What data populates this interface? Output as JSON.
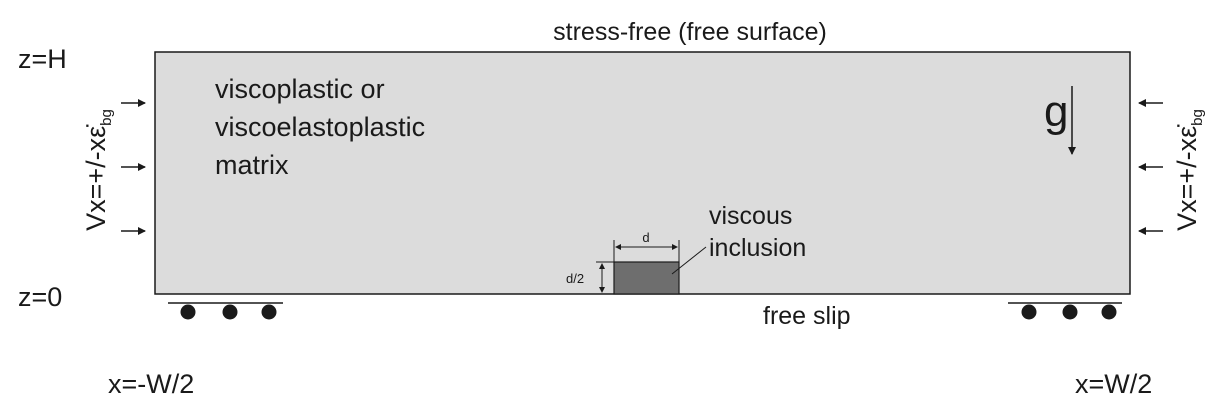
{
  "labels": {
    "top_boundary": "stress-free (free surface)",
    "z_top": "z=H",
    "z_bottom": "z=0",
    "x_left": "x=-W/2",
    "x_right": "x=W/2",
    "bottom_boundary": "free slip",
    "matrix_line1": "viscoplastic or",
    "matrix_line2": "viscoelastoplastic",
    "matrix_line3": "matrix",
    "inclusion_line1": "viscous",
    "inclusion_line2": "inclusion",
    "inclusion_width": "d",
    "inclusion_height": "d/2",
    "gravity": "g",
    "velocity_main": "Vx=+/-xε̇",
    "velocity_sub": "bg"
  },
  "colors": {
    "matrix_fill": "#dcdcdc",
    "inclusion_fill": "#6e6e6e",
    "line": "#1a1a1a"
  }
}
